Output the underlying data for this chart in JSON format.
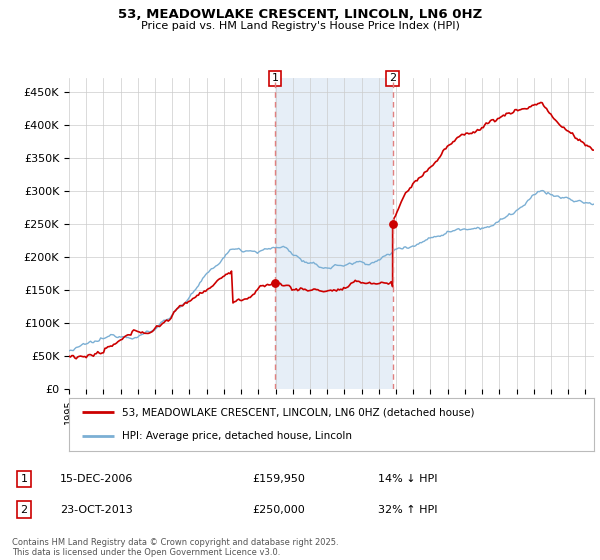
{
  "title": "53, MEADOWLAKE CRESCENT, LINCOLN, LN6 0HZ",
  "subtitle": "Price paid vs. HM Land Registry's House Price Index (HPI)",
  "ylim": [
    0,
    470000
  ],
  "yticks": [
    0,
    50000,
    100000,
    150000,
    200000,
    250000,
    300000,
    350000,
    400000,
    450000
  ],
  "ytick_labels": [
    "£0",
    "£50K",
    "£100K",
    "£150K",
    "£200K",
    "£250K",
    "£300K",
    "£350K",
    "£400K",
    "£450K"
  ],
  "sale1_date_num": 2006.96,
  "sale1_price": 159950,
  "sale1_label": "15-DEC-2006",
  "sale1_price_str": "£159,950",
  "sale1_hpi_str": "14% ↓ HPI",
  "sale2_date_num": 2013.81,
  "sale2_price": 250000,
  "sale2_label": "23-OCT-2013",
  "sale2_price_str": "£250,000",
  "sale2_hpi_str": "32% ↑ HPI",
  "hpi_color": "#7bafd4",
  "sale_color": "#cc0000",
  "vline_color": "#e08080",
  "shade_color": "#dce8f5",
  "legend_label_sale": "53, MEADOWLAKE CRESCENT, LINCOLN, LN6 0HZ (detached house)",
  "legend_label_hpi": "HPI: Average price, detached house, Lincoln",
  "footnote": "Contains HM Land Registry data © Crown copyright and database right 2025.\nThis data is licensed under the Open Government Licence v3.0.",
  "background_color": "#ffffff",
  "grid_color": "#cccccc"
}
